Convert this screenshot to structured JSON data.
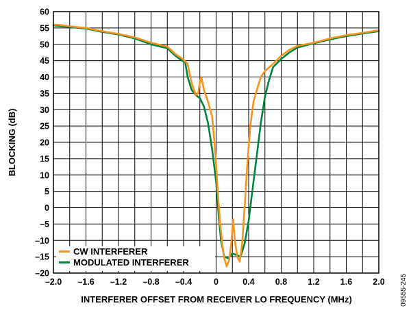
{
  "chart_data": {
    "type": "line",
    "xlabel": "INTERFERER OFFSET FROM RECEIVER LO FREQUENCY (MHz)",
    "ylabel": "BLOCKING (dB)",
    "xlim": [
      -2.0,
      2.0
    ],
    "ylim": [
      -20,
      60
    ],
    "x_ticks": [
      "–2.0",
      "–1.6",
      "–1.2",
      "–0.8",
      "–0.4",
      "0",
      "0.4",
      "0.8",
      "1.2",
      "1.6",
      "2.0"
    ],
    "y_ticks": [
      "–20",
      "–15",
      "–10",
      "–5",
      "0",
      "5",
      "10",
      "15",
      "20",
      "25",
      "30",
      "35",
      "40",
      "45",
      "50",
      "55",
      "60"
    ],
    "grid": true,
    "legend_position": "bottom-left",
    "series": [
      {
        "name": "CW INTERFERER",
        "color": "#f7941d",
        "points": [
          [
            -2.0,
            56.0
          ],
          [
            -1.9,
            55.9
          ],
          [
            -1.8,
            55.5
          ],
          [
            -1.6,
            55.0
          ],
          [
            -1.4,
            54.0
          ],
          [
            -1.2,
            53.2
          ],
          [
            -1.0,
            52.1
          ],
          [
            -0.8,
            50.5
          ],
          [
            -0.6,
            49.3
          ],
          [
            -0.5,
            47.0
          ],
          [
            -0.4,
            45.3
          ],
          [
            -0.35,
            44.0
          ],
          [
            -0.3,
            38.0
          ],
          [
            -0.25,
            34.5
          ],
          [
            -0.22,
            35.0
          ],
          [
            -0.2,
            38.5
          ],
          [
            -0.18,
            40.0
          ],
          [
            -0.15,
            36.0
          ],
          [
            -0.1,
            32.5
          ],
          [
            -0.05,
            28.0
          ],
          [
            -0.02,
            20.0
          ],
          [
            0.0,
            13.0
          ],
          [
            0.02,
            5.0
          ],
          [
            0.05,
            -5.0
          ],
          [
            0.08,
            -12.0
          ],
          [
            0.1,
            -15.5
          ],
          [
            0.13,
            -18.0
          ],
          [
            0.16,
            -16.0
          ],
          [
            0.19,
            -10.0
          ],
          [
            0.21,
            -3.5
          ],
          [
            0.23,
            -10.0
          ],
          [
            0.26,
            -15.0
          ],
          [
            0.29,
            -16.5
          ],
          [
            0.32,
            -11.0
          ],
          [
            0.35,
            0.0
          ],
          [
            0.38,
            12.0
          ],
          [
            0.42,
            25.0
          ],
          [
            0.46,
            32.5
          ],
          [
            0.5,
            36.0
          ],
          [
            0.55,
            40.0
          ],
          [
            0.6,
            41.8
          ],
          [
            0.7,
            44.0
          ],
          [
            0.8,
            46.5
          ],
          [
            0.9,
            48.3
          ],
          [
            1.0,
            49.5
          ],
          [
            1.2,
            50.5
          ],
          [
            1.4,
            51.8
          ],
          [
            1.6,
            52.8
          ],
          [
            1.8,
            53.5
          ],
          [
            2.0,
            54.3
          ]
        ]
      },
      {
        "name": "MODULATED INTERFERER",
        "color": "#00843d",
        "points": [
          [
            -2.0,
            55.8
          ],
          [
            -1.8,
            55.3
          ],
          [
            -1.6,
            54.8
          ],
          [
            -1.4,
            53.8
          ],
          [
            -1.2,
            53.0
          ],
          [
            -1.0,
            51.8
          ],
          [
            -0.8,
            50.0
          ],
          [
            -0.6,
            48.8
          ],
          [
            -0.5,
            46.5
          ],
          [
            -0.42,
            45.0
          ],
          [
            -0.38,
            44.5
          ],
          [
            -0.35,
            40.0
          ],
          [
            -0.3,
            36.0
          ],
          [
            -0.25,
            34.5
          ],
          [
            -0.2,
            33.5
          ],
          [
            -0.15,
            31.0
          ],
          [
            -0.1,
            26.0
          ],
          [
            -0.05,
            18.0
          ],
          [
            0.0,
            8.0
          ],
          [
            0.03,
            -2.0
          ],
          [
            0.06,
            -10.0
          ],
          [
            0.1,
            -15.0
          ],
          [
            0.15,
            -15.5
          ],
          [
            0.2,
            -14.0
          ],
          [
            0.25,
            -14.5
          ],
          [
            0.3,
            -15.0
          ],
          [
            0.35,
            -11.0
          ],
          [
            0.4,
            -4.0
          ],
          [
            0.45,
            6.0
          ],
          [
            0.5,
            16.0
          ],
          [
            0.55,
            26.0
          ],
          [
            0.6,
            34.0
          ],
          [
            0.65,
            39.0
          ],
          [
            0.7,
            43.0
          ],
          [
            0.8,
            45.5
          ],
          [
            0.9,
            47.5
          ],
          [
            1.0,
            49.0
          ],
          [
            1.2,
            50.3
          ],
          [
            1.4,
            51.5
          ],
          [
            1.6,
            52.5
          ],
          [
            1.8,
            53.3
          ],
          [
            2.0,
            54.0
          ]
        ]
      }
    ]
  },
  "figure_id": "09555-245"
}
